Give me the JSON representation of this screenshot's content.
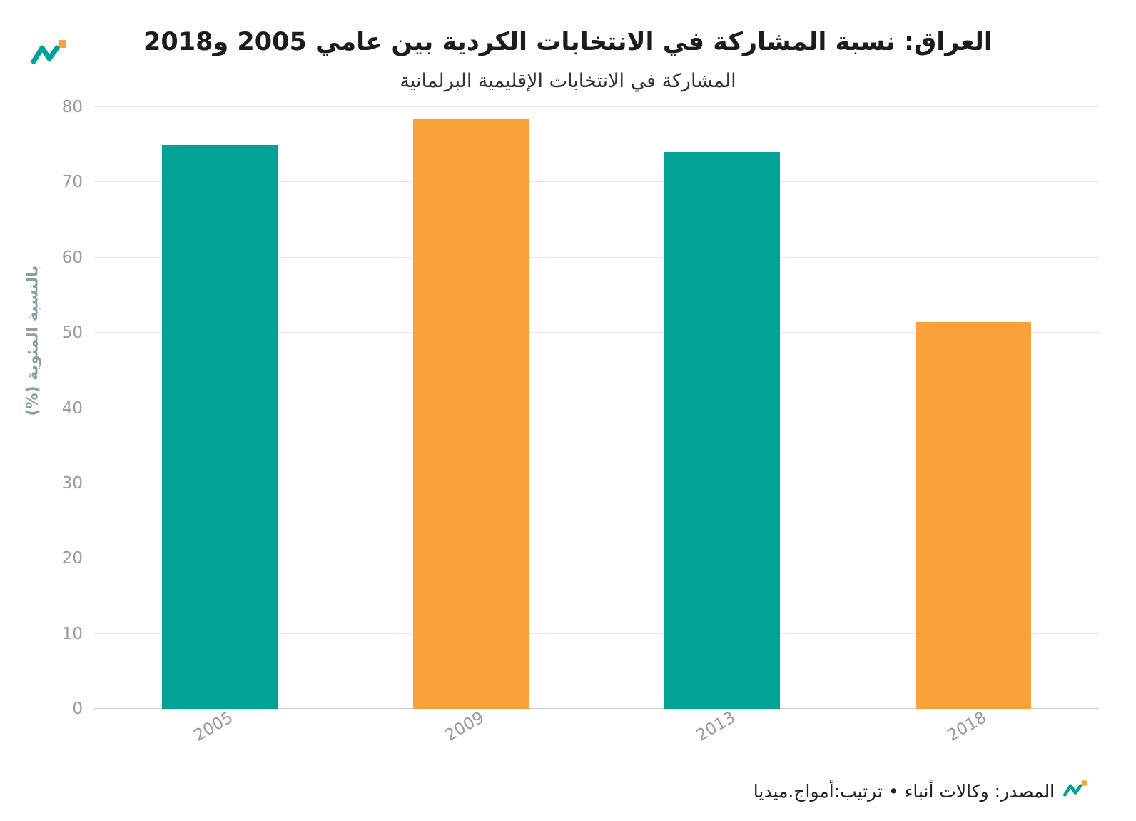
{
  "chart": {
    "title": "العراق: نسبة المشاركة في الانتخابات الكردية بين عامي 2005 و2018",
    "subtitle": "المشاركة في الانتخابات الإقليمية البرلمانية",
    "ylabel": "بالنسبة المئوية (%)",
    "source": "المصدر: وكالات أنباء • ترتيب:أمواج.ميديا"
  },
  "chart_data": {
    "type": "bar",
    "title": "العراق: نسبة المشاركة في الانتخابات الكردية بين عامي 2005 و2018",
    "subtitle": "المشاركة في الانتخابات الإقليمية البرلمانية",
    "categories": [
      "2005",
      "2009",
      "2013",
      "2018"
    ],
    "values": [
      75,
      78.5,
      74,
      51.4
    ],
    "colors": [
      "#00A396",
      "#F9A23C",
      "#00A396",
      "#F9A23C"
    ],
    "xlabel": "",
    "ylabel": "بالنسبة المئوية (%)",
    "ylim": [
      0,
      80
    ],
    "yticks": [
      0,
      10,
      20,
      30,
      40,
      50,
      60,
      70,
      80
    ],
    "grid": true,
    "legend_position": "none"
  },
  "branding": {
    "teal": "#00A396",
    "orange": "#F9A23C",
    "logo_name": "amwaj-media-logo"
  }
}
